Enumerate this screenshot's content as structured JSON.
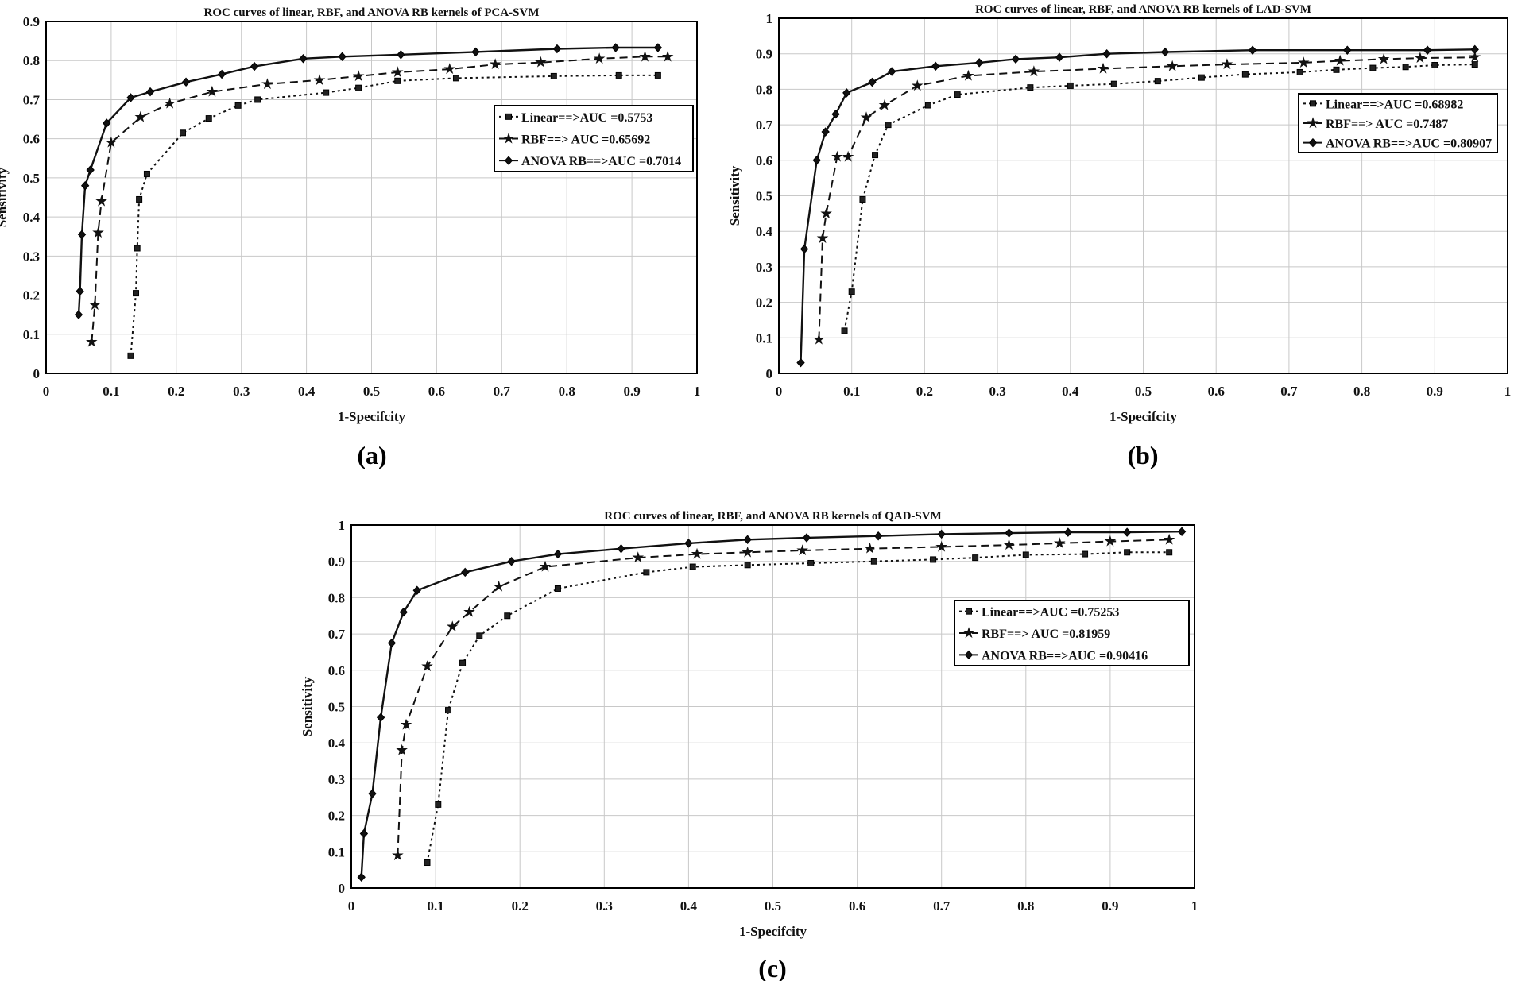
{
  "chart_data": [
    {
      "panel_label": "(a)",
      "type": "line",
      "title": "ROC curves of linear, RBF, and ANOVA RB kernels of PCA-SVM",
      "xlabel": "1-Specifcity",
      "ylabel": "Sensitivity",
      "xlim": [
        0,
        1
      ],
      "ylim": [
        0,
        0.9
      ],
      "xticks": [
        "0",
        "0.1",
        "0.2",
        "0.3",
        "0.4",
        "0.5",
        "0.6",
        "0.7",
        "0.8",
        "0.9",
        "1"
      ],
      "yticks": [
        "0",
        "0.1",
        "0.2",
        "0.3",
        "0.4",
        "0.5",
        "0.6",
        "0.7",
        "0.8",
        "0.9"
      ],
      "grid": true,
      "legend_position": "right",
      "series": [
        {
          "name": "Linear==>AUC =0.5753",
          "marker": "square",
          "dash": "dotted",
          "x": [
            0.13,
            0.138,
            0.14,
            0.143,
            0.155,
            0.21,
            0.25,
            0.295,
            0.325,
            0.43,
            0.48,
            0.54,
            0.63,
            0.78,
            0.88,
            0.94
          ],
          "y": [
            0.045,
            0.205,
            0.32,
            0.445,
            0.51,
            0.615,
            0.652,
            0.685,
            0.7,
            0.718,
            0.73,
            0.748,
            0.755,
            0.76,
            0.762,
            0.762
          ]
        },
        {
          "name": "RBF==> AUC =0.65692",
          "marker": "star",
          "dash": "dashed",
          "x": [
            0.07,
            0.075,
            0.08,
            0.085,
            0.1,
            0.145,
            0.19,
            0.255,
            0.34,
            0.42,
            0.48,
            0.54,
            0.62,
            0.69,
            0.76,
            0.85,
            0.92,
            0.955
          ],
          "y": [
            0.08,
            0.175,
            0.36,
            0.44,
            0.59,
            0.655,
            0.69,
            0.72,
            0.74,
            0.75,
            0.76,
            0.77,
            0.778,
            0.79,
            0.795,
            0.805,
            0.81,
            0.81
          ]
        },
        {
          "name": "ANOVA RB==>AUC =0.7014",
          "marker": "diamond",
          "dash": "solid",
          "x": [
            0.05,
            0.052,
            0.055,
            0.06,
            0.068,
            0.093,
            0.13,
            0.16,
            0.215,
            0.27,
            0.32,
            0.395,
            0.455,
            0.545,
            0.66,
            0.785,
            0.875,
            0.94
          ],
          "y": [
            0.15,
            0.21,
            0.355,
            0.48,
            0.52,
            0.64,
            0.705,
            0.72,
            0.745,
            0.765,
            0.785,
            0.805,
            0.81,
            0.815,
            0.822,
            0.83,
            0.833,
            0.833
          ]
        }
      ]
    },
    {
      "panel_label": "(b)",
      "type": "line",
      "title": "ROC curves of linear, RBF, and ANOVA RB kernels of LAD-SVM",
      "xlabel": "1-Specifcity",
      "ylabel": "Sensitivity",
      "xlim": [
        0,
        1
      ],
      "ylim": [
        0,
        1
      ],
      "xticks": [
        "0",
        "0.1",
        "0.2",
        "0.3",
        "0.4",
        "0.5",
        "0.6",
        "0.7",
        "0.8",
        "0.9",
        "1"
      ],
      "yticks": [
        "0",
        "0.1",
        "0.2",
        "0.3",
        "0.4",
        "0.5",
        "0.6",
        "0.7",
        "0.8",
        "0.9",
        "1"
      ],
      "grid": true,
      "legend_position": "right",
      "series": [
        {
          "name": "Linear==>AUC =0.68982",
          "marker": "square",
          "dash": "dotted",
          "x": [
            0.09,
            0.1,
            0.115,
            0.132,
            0.15,
            0.205,
            0.245,
            0.345,
            0.4,
            0.46,
            0.52,
            0.58,
            0.64,
            0.715,
            0.765,
            0.815,
            0.86,
            0.9,
            0.955
          ],
          "y": [
            0.12,
            0.23,
            0.49,
            0.615,
            0.7,
            0.755,
            0.785,
            0.805,
            0.81,
            0.815,
            0.823,
            0.833,
            0.842,
            0.848,
            0.855,
            0.86,
            0.863,
            0.868,
            0.87
          ]
        },
        {
          "name": "RBF==> AUC =0.7487",
          "marker": "star",
          "dash": "dashed",
          "x": [
            0.055,
            0.06,
            0.065,
            0.08,
            0.095,
            0.12,
            0.145,
            0.19,
            0.26,
            0.35,
            0.445,
            0.54,
            0.615,
            0.72,
            0.77,
            0.83,
            0.88,
            0.955
          ],
          "y": [
            0.095,
            0.38,
            0.45,
            0.61,
            0.61,
            0.72,
            0.755,
            0.81,
            0.838,
            0.85,
            0.858,
            0.865,
            0.87,
            0.875,
            0.88,
            0.885,
            0.888,
            0.89
          ]
        },
        {
          "name": "ANOVA RB==>AUC =0.80907",
          "marker": "diamond",
          "dash": "solid",
          "x": [
            0.03,
            0.035,
            0.052,
            0.064,
            0.078,
            0.093,
            0.128,
            0.155,
            0.215,
            0.275,
            0.325,
            0.385,
            0.45,
            0.53,
            0.65,
            0.78,
            0.89,
            0.955
          ],
          "y": [
            0.03,
            0.35,
            0.6,
            0.68,
            0.73,
            0.79,
            0.82,
            0.85,
            0.865,
            0.875,
            0.885,
            0.89,
            0.9,
            0.905,
            0.91,
            0.91,
            0.91,
            0.912
          ]
        }
      ]
    },
    {
      "panel_label": "(c)",
      "type": "line",
      "title": "ROC curves of linear, RBF, and ANOVA RB kernels of QAD-SVM",
      "xlabel": "1-Specifcity",
      "ylabel": "Sensitivity",
      "xlim": [
        0,
        1
      ],
      "ylim": [
        0,
        1
      ],
      "xticks": [
        "0",
        "0.1",
        "0.2",
        "0.3",
        "0.4",
        "0.5",
        "0.6",
        "0.7",
        "0.8",
        "0.9",
        "1"
      ],
      "yticks": [
        "0",
        "0.1",
        "0.2",
        "0.3",
        "0.4",
        "0.5",
        "0.6",
        "0.7",
        "0.8",
        "0.9",
        "1"
      ],
      "grid": true,
      "legend_position": "right",
      "series": [
        {
          "name": "Linear==>AUC =0.75253",
          "marker": "square",
          "dash": "dotted",
          "x": [
            0.09,
            0.103,
            0.115,
            0.132,
            0.152,
            0.185,
            0.245,
            0.35,
            0.405,
            0.47,
            0.545,
            0.62,
            0.69,
            0.74,
            0.8,
            0.87,
            0.92,
            0.97
          ],
          "y": [
            0.07,
            0.23,
            0.49,
            0.62,
            0.695,
            0.75,
            0.825,
            0.87,
            0.885,
            0.89,
            0.895,
            0.9,
            0.905,
            0.91,
            0.918,
            0.92,
            0.925,
            0.925
          ]
        },
        {
          "name": "RBF==> AUC =0.81959",
          "marker": "star",
          "dash": "dashed",
          "x": [
            0.055,
            0.06,
            0.065,
            0.09,
            0.12,
            0.14,
            0.175,
            0.23,
            0.34,
            0.41,
            0.47,
            0.535,
            0.615,
            0.7,
            0.78,
            0.84,
            0.9,
            0.97
          ],
          "y": [
            0.09,
            0.38,
            0.45,
            0.61,
            0.72,
            0.76,
            0.83,
            0.885,
            0.91,
            0.92,
            0.925,
            0.93,
            0.935,
            0.94,
            0.945,
            0.95,
            0.955,
            0.96
          ]
        },
        {
          "name": "ANOVA RB==>AUC =0.90416",
          "marker": "diamond",
          "dash": "solid",
          "x": [
            0.012,
            0.015,
            0.025,
            0.035,
            0.048,
            0.062,
            0.078,
            0.135,
            0.19,
            0.245,
            0.32,
            0.4,
            0.47,
            0.54,
            0.625,
            0.7,
            0.78,
            0.85,
            0.92,
            0.985
          ],
          "y": [
            0.03,
            0.15,
            0.26,
            0.47,
            0.675,
            0.76,
            0.82,
            0.87,
            0.9,
            0.92,
            0.935,
            0.95,
            0.96,
            0.965,
            0.97,
            0.975,
            0.978,
            0.98,
            0.98,
            0.982
          ]
        }
      ]
    }
  ]
}
